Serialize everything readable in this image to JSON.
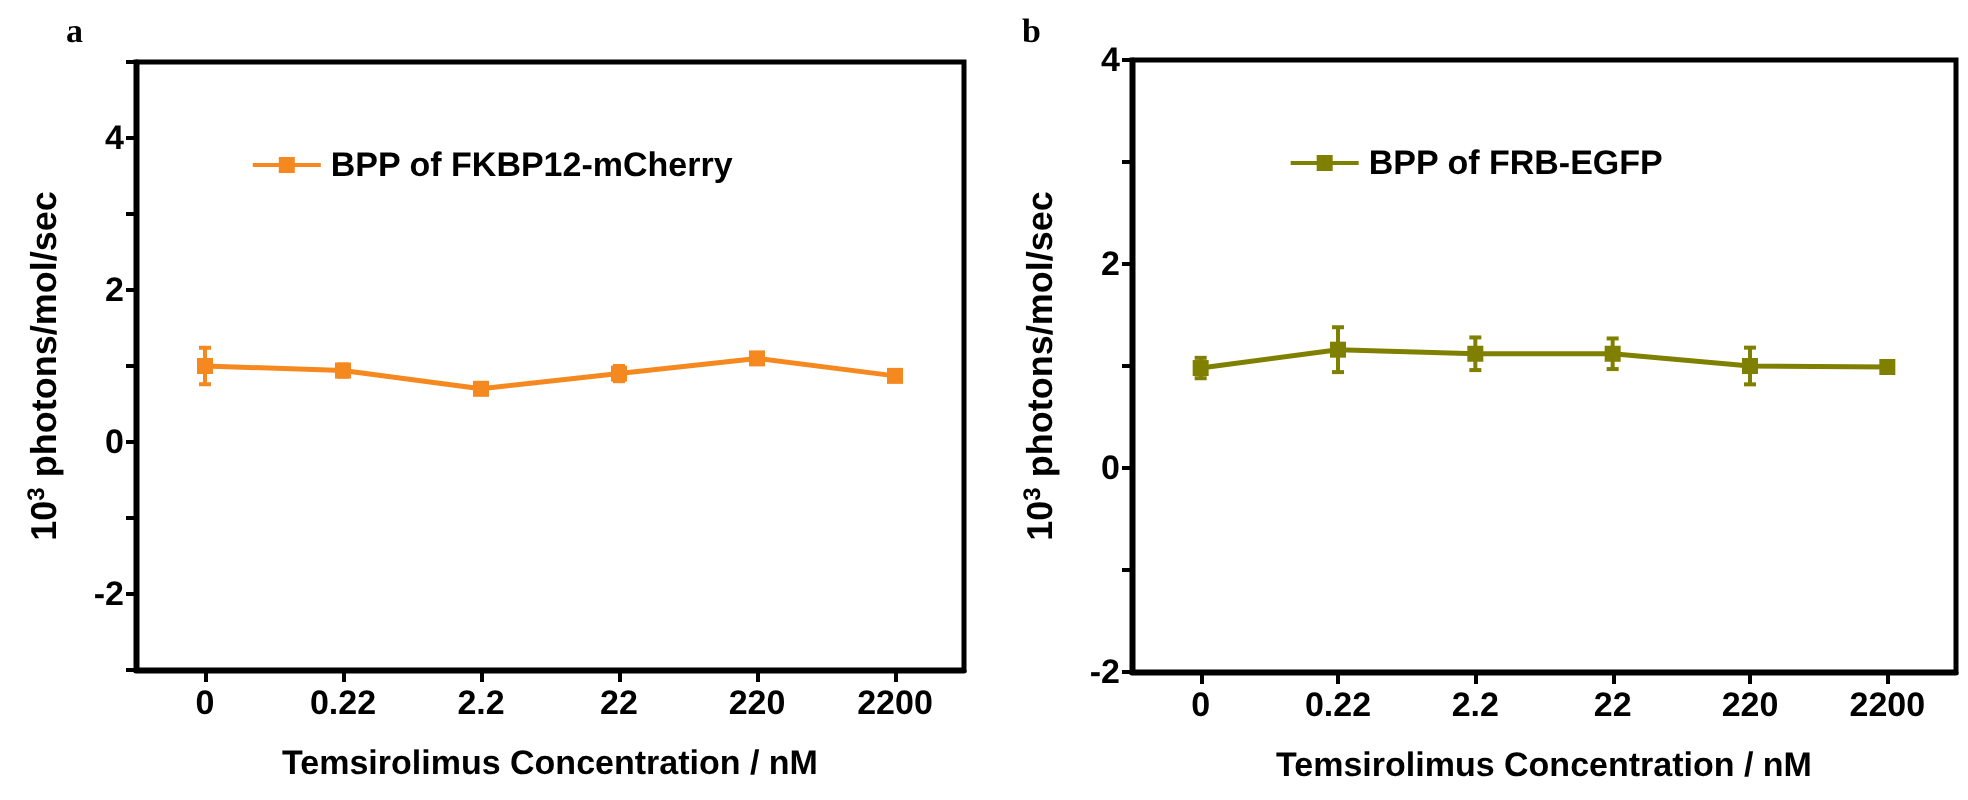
{
  "chart_data": [
    {
      "type": "line",
      "title": "a",
      "xlabel": "Temsirolimus Concentration / nM",
      "ylabel": "10$^{3}$ photons/mol/sec",
      "categories": [
        "0",
        "0.22",
        "2.2",
        "22",
        "220",
        "2200"
      ],
      "series": [
        {
          "name": "BPP of FKBP12-mCherry",
          "color": "#f5891f",
          "values": [
            1.0,
            0.94,
            0.7,
            0.9,
            1.1,
            0.87
          ],
          "errors": [
            0.24,
            0.08,
            0.07,
            0.1,
            0.07,
            0.06
          ]
        }
      ],
      "ylim": [
        -3,
        5
      ],
      "yticks": [
        {
          "value": -3,
          "label": null
        },
        -2,
        {
          "value": -1,
          "label": null
        },
        0,
        {
          "value": 1,
          "label": null
        },
        2,
        {
          "value": 3,
          "label": null
        },
        4,
        {
          "value": 5,
          "label": null
        }
      ],
      "legend": "top",
      "marker": "square",
      "line_style": "solid"
    },
    {
      "type": "line",
      "title": "b",
      "xlabel": "Temsirolimus Concentration / nM",
      "ylabel": "10$^{3}$ photons/mol/sec",
      "categories": [
        "0",
        "0.22",
        "2.2",
        "22",
        "220",
        "2200"
      ],
      "series": [
        {
          "name": "BPP of FRB-EGFP",
          "color": "#808000",
          "values": [
            0.98,
            1.16,
            1.12,
            1.12,
            1.0,
            0.99
          ],
          "errors": [
            0.1,
            0.22,
            0.16,
            0.15,
            0.18,
            0.04
          ]
        }
      ],
      "ylim": [
        -2,
        4
      ],
      "yticks": [
        -2,
        {
          "value": -1,
          "label": null
        },
        0,
        {
          "value": 1,
          "label": null
        },
        2,
        {
          "value": 3,
          "label": null
        },
        4
      ],
      "legend": "top",
      "marker": "square",
      "line_style": "solid"
    }
  ]
}
